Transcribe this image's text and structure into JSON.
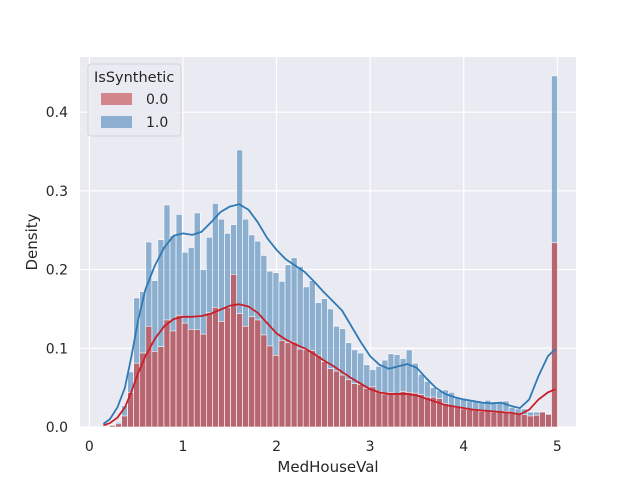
{
  "chart_data": {
    "type": "bar",
    "title": "",
    "xlabel": "MedHouseVal",
    "ylabel": "Density",
    "xlim": [
      -0.1,
      5.2
    ],
    "ylim": [
      0,
      0.47
    ],
    "xticks": [
      0,
      1,
      2,
      3,
      4,
      5
    ],
    "xtick_labels": [
      "0",
      "1",
      "2",
      "3",
      "4",
      "5"
    ],
    "yticks": [
      0.0,
      0.1,
      0.2,
      0.3,
      0.4
    ],
    "ytick_labels": [
      "0.0",
      "0.1",
      "0.2",
      "0.3",
      "0.4"
    ],
    "grid": true,
    "legend": {
      "title": "IsSynthetic",
      "position": "top-left",
      "entries": [
        {
          "label": "0.0",
          "color": "#c44e52"
        },
        {
          "label": "1.0",
          "color": "#4c87b8"
        }
      ]
    },
    "bin_edges": [
      0.15,
      0.2147,
      0.2794,
      0.3441,
      0.4088,
      0.4735,
      0.5382,
      0.6029,
      0.6676,
      0.7323,
      0.797,
      0.8617,
      0.9264,
      0.9911,
      1.0558,
      1.1205,
      1.1852,
      1.2499,
      1.3146,
      1.3793,
      1.444,
      1.5087,
      1.5734,
      1.6381,
      1.7028,
      1.7675,
      1.8322,
      1.8969,
      1.9616,
      2.0263,
      2.091,
      2.1557,
      2.2204,
      2.2851,
      2.3498,
      2.4145,
      2.4792,
      2.5439,
      2.6086,
      2.6733,
      2.738,
      2.8027,
      2.8674,
      2.9321,
      2.9968,
      3.0615,
      3.1262,
      3.1909,
      3.2556,
      3.3203,
      3.385,
      3.4497,
      3.5144,
      3.5791,
      3.6438,
      3.7085,
      3.7732,
      3.8379,
      3.9026,
      3.9673,
      4.032,
      4.0967,
      4.1614,
      4.2261,
      4.2908,
      4.3555,
      4.4202,
      4.4849,
      4.5496,
      4.6143,
      4.679,
      4.7437,
      4.8084,
      4.8731,
      4.9378,
      5.0025
    ],
    "series": [
      {
        "name": "1.0",
        "color": "#4c87b8",
        "values": [
          0.0,
          0.003,
          0.006,
          0.027,
          0.07,
          0.164,
          0.172,
          0.235,
          0.186,
          0.238,
          0.282,
          0.243,
          0.27,
          0.222,
          0.228,
          0.272,
          0.2,
          0.241,
          0.284,
          0.264,
          0.246,
          0.257,
          0.352,
          0.264,
          0.244,
          0.236,
          0.218,
          0.198,
          0.196,
          0.185,
          0.206,
          0.215,
          0.204,
          0.178,
          0.186,
          0.158,
          0.163,
          0.15,
          0.128,
          0.125,
          0.107,
          0.098,
          0.094,
          0.079,
          0.073,
          0.077,
          0.085,
          0.093,
          0.092,
          0.087,
          0.098,
          0.081,
          0.067,
          0.058,
          0.05,
          0.046,
          0.047,
          0.044,
          0.038,
          0.035,
          0.033,
          0.033,
          0.032,
          0.034,
          0.032,
          0.031,
          0.033,
          0.025,
          0.023,
          0.023,
          0.019,
          0.019,
          0.019,
          0.017,
          0.446
        ],
        "kde": [
          [
            0.15,
            0.004
          ],
          [
            0.22,
            0.01
          ],
          [
            0.3,
            0.025
          ],
          [
            0.38,
            0.05
          ],
          [
            0.45,
            0.09
          ],
          [
            0.52,
            0.135
          ],
          [
            0.6,
            0.175
          ],
          [
            0.7,
            0.205
          ],
          [
            0.8,
            0.228
          ],
          [
            0.9,
            0.243
          ],
          [
            1.0,
            0.246
          ],
          [
            1.1,
            0.244
          ],
          [
            1.2,
            0.248
          ],
          [
            1.3,
            0.26
          ],
          [
            1.4,
            0.273
          ],
          [
            1.5,
            0.28
          ],
          [
            1.6,
            0.283
          ],
          [
            1.7,
            0.276
          ],
          [
            1.8,
            0.26
          ],
          [
            1.9,
            0.24
          ],
          [
            2.0,
            0.225
          ],
          [
            2.1,
            0.213
          ],
          [
            2.2,
            0.205
          ],
          [
            2.3,
            0.197
          ],
          [
            2.4,
            0.185
          ],
          [
            2.5,
            0.172
          ],
          [
            2.6,
            0.16
          ],
          [
            2.7,
            0.148
          ],
          [
            2.8,
            0.128
          ],
          [
            2.9,
            0.108
          ],
          [
            3.0,
            0.09
          ],
          [
            3.1,
            0.079
          ],
          [
            3.2,
            0.074
          ],
          [
            3.3,
            0.077
          ],
          [
            3.4,
            0.08
          ],
          [
            3.5,
            0.075
          ],
          [
            3.6,
            0.062
          ],
          [
            3.7,
            0.05
          ],
          [
            3.8,
            0.042
          ],
          [
            3.9,
            0.038
          ],
          [
            4.0,
            0.035
          ],
          [
            4.1,
            0.033
          ],
          [
            4.2,
            0.031
          ],
          [
            4.3,
            0.03
          ],
          [
            4.4,
            0.031
          ],
          [
            4.5,
            0.027
          ],
          [
            4.6,
            0.024
          ],
          [
            4.7,
            0.035
          ],
          [
            4.8,
            0.065
          ],
          [
            4.9,
            0.09
          ],
          [
            4.98,
            0.099
          ]
        ]
      },
      {
        "name": "0.0",
        "color": "#c44e52",
        "values": [
          0.0,
          0.002,
          0.004,
          0.014,
          0.044,
          0.081,
          0.094,
          0.128,
          0.096,
          0.102,
          0.136,
          0.122,
          0.142,
          0.132,
          0.124,
          0.124,
          0.118,
          0.145,
          0.152,
          0.134,
          0.152,
          0.194,
          0.144,
          0.128,
          0.14,
          0.136,
          0.117,
          0.103,
          0.091,
          0.11,
          0.107,
          0.108,
          0.099,
          0.098,
          0.097,
          0.091,
          0.083,
          0.074,
          0.071,
          0.066,
          0.06,
          0.055,
          0.054,
          0.049,
          0.051,
          0.045,
          0.042,
          0.044,
          0.042,
          0.045,
          0.044,
          0.043,
          0.041,
          0.038,
          0.038,
          0.036,
          0.03,
          0.027,
          0.025,
          0.023,
          0.022,
          0.021,
          0.02,
          0.02,
          0.019,
          0.019,
          0.02,
          0.017,
          0.016,
          0.016,
          0.014,
          0.015,
          0.019,
          0.016,
          0.234
        ],
        "kde": [
          [
            0.15,
            0.002
          ],
          [
            0.22,
            0.005
          ],
          [
            0.3,
            0.012
          ],
          [
            0.38,
            0.025
          ],
          [
            0.45,
            0.045
          ],
          [
            0.52,
            0.068
          ],
          [
            0.6,
            0.09
          ],
          [
            0.7,
            0.112
          ],
          [
            0.8,
            0.128
          ],
          [
            0.9,
            0.137
          ],
          [
            1.0,
            0.14
          ],
          [
            1.1,
            0.14
          ],
          [
            1.2,
            0.141
          ],
          [
            1.3,
            0.144
          ],
          [
            1.4,
            0.149
          ],
          [
            1.5,
            0.154
          ],
          [
            1.6,
            0.156
          ],
          [
            1.7,
            0.153
          ],
          [
            1.8,
            0.145
          ],
          [
            1.9,
            0.132
          ],
          [
            2.0,
            0.119
          ],
          [
            2.1,
            0.111
          ],
          [
            2.2,
            0.105
          ],
          [
            2.3,
            0.1
          ],
          [
            2.4,
            0.093
          ],
          [
            2.5,
            0.085
          ],
          [
            2.6,
            0.078
          ],
          [
            2.7,
            0.07
          ],
          [
            2.8,
            0.062
          ],
          [
            2.9,
            0.055
          ],
          [
            3.0,
            0.048
          ],
          [
            3.1,
            0.044
          ],
          [
            3.2,
            0.042
          ],
          [
            3.3,
            0.042
          ],
          [
            3.4,
            0.042
          ],
          [
            3.5,
            0.04
          ],
          [
            3.6,
            0.036
          ],
          [
            3.7,
            0.032
          ],
          [
            3.8,
            0.028
          ],
          [
            3.9,
            0.026
          ],
          [
            4.0,
            0.024
          ],
          [
            4.1,
            0.022
          ],
          [
            4.2,
            0.021
          ],
          [
            4.3,
            0.02
          ],
          [
            4.4,
            0.019
          ],
          [
            4.5,
            0.018
          ],
          [
            4.6,
            0.016
          ],
          [
            4.7,
            0.022
          ],
          [
            4.8,
            0.035
          ],
          [
            4.9,
            0.044
          ],
          [
            4.98,
            0.048
          ]
        ]
      }
    ]
  }
}
